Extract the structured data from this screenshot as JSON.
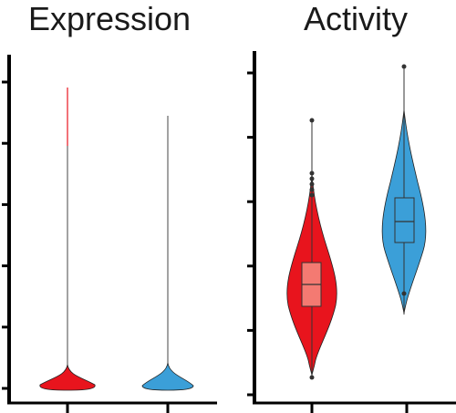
{
  "chart_data": [
    {
      "type": "violin",
      "title": "Expression",
      "xlabel": "",
      "ylabel": "",
      "categories": [
        "",
        ""
      ],
      "series": [
        {
          "color": "#e8141d",
          "min": 0.0,
          "max": 1.0,
          "median": 0.0,
          "note_shape": "mass concentrated near zero with long thin tail"
        },
        {
          "color": "#3b9fd8",
          "min": 0.0,
          "max": 0.91,
          "median": 0.0,
          "note_shape": "mass concentrated near zero with long thin tail"
        }
      ],
      "ylim": [
        0,
        1.1
      ],
      "yticks": 6,
      "grid": false
    },
    {
      "type": "violin",
      "title": "Activity",
      "xlabel": "",
      "ylabel": "",
      "categories": [
        "",
        ""
      ],
      "series": [
        {
          "color": "#e8141d",
          "box_color": "#f47a72",
          "min": 0.3,
          "q1": 1.05,
          "median": 1.33,
          "q3": 1.68,
          "max": 3.23,
          "outliers": [
            0.3,
            2.4,
            2.5,
            2.6,
            2.7,
            2.8,
            3.23
          ]
        },
        {
          "color": "#3b9fd8",
          "box_color": "#3b9fd8",
          "min": 1.25,
          "q1": 2.4,
          "median": 2.7,
          "q3": 3.1,
          "max": 5.1,
          "outliers": [
            5.1,
            1.55
          ]
        }
      ],
      "ylim": [
        0,
        5.5
      ],
      "yticks": 6,
      "grid": false
    }
  ]
}
